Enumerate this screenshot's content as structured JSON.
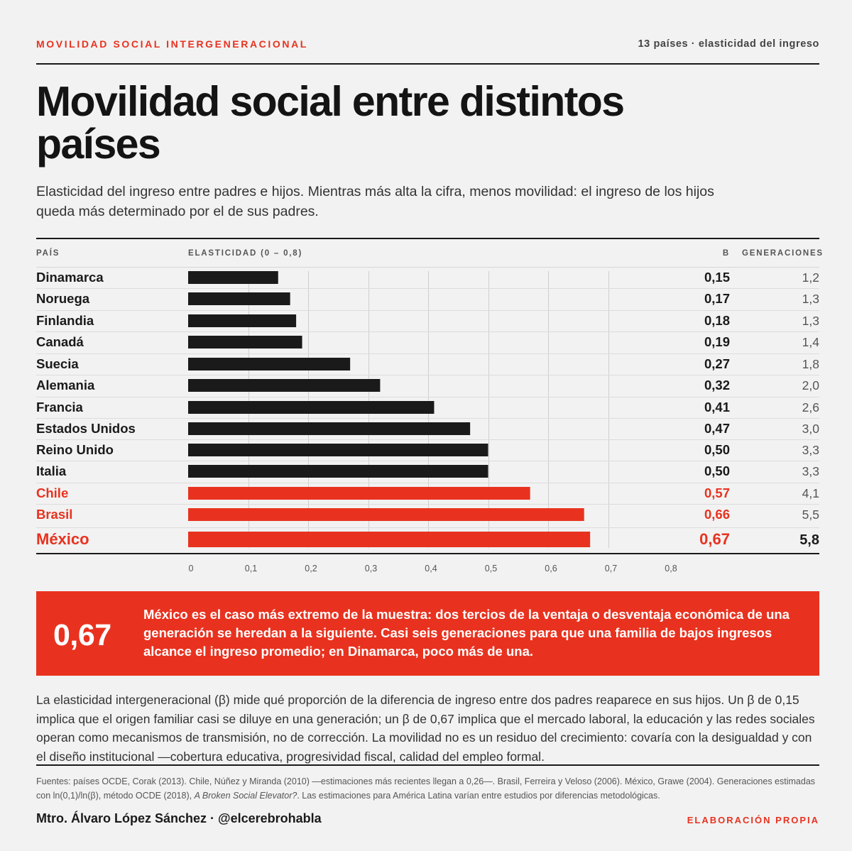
{
  "header": {
    "kicker": "MOVILIDAD SOCIAL INTERGENERACIONAL",
    "meta": "13 países · elasticidad del ingreso"
  },
  "title": "Movilidad social entre distintos países",
  "subtitle": "Elasticidad del ingreso entre padres e hijos. Mientras más alta la cifra, menos movilidad: el ingreso de los hijos queda más determinado por el de sus padres.",
  "columns": {
    "country": "PAÍS",
    "elasticity": "ELASTICIDAD (0 – 0,8)",
    "beta": "Β",
    "generations": "GENERACIONES"
  },
  "colors": {
    "dark_bar": "#1a1a1a",
    "highlight": "#e8321f",
    "background": "#f2f2f2"
  },
  "chart_data": {
    "type": "bar",
    "orientation": "horizontal",
    "title": "Movilidad social entre distintos países",
    "xlabel": "ELASTICIDAD (0 – 0,8)",
    "xlim": [
      0,
      0.8
    ],
    "x_ticks": [
      "0",
      "0,1",
      "0,2",
      "0,3",
      "0,4",
      "0,5",
      "0,6",
      "0,7",
      "0,8"
    ],
    "grid": true,
    "rows": [
      {
        "country": "Dinamarca",
        "value": 0.15,
        "value_label": "0,15",
        "generations": "1,2",
        "highlight": false
      },
      {
        "country": "Noruega",
        "value": 0.17,
        "value_label": "0,17",
        "generations": "1,3",
        "highlight": false
      },
      {
        "country": "Finlandia",
        "value": 0.18,
        "value_label": "0,18",
        "generations": "1,3",
        "highlight": false
      },
      {
        "country": "Canadá",
        "value": 0.19,
        "value_label": "0,19",
        "generations": "1,4",
        "highlight": false
      },
      {
        "country": "Suecia",
        "value": 0.27,
        "value_label": "0,27",
        "generations": "1,8",
        "highlight": false
      },
      {
        "country": "Alemania",
        "value": 0.32,
        "value_label": "0,32",
        "generations": "2,0",
        "highlight": false
      },
      {
        "country": "Francia",
        "value": 0.41,
        "value_label": "0,41",
        "generations": "2,6",
        "highlight": false
      },
      {
        "country": "Estados Unidos",
        "value": 0.47,
        "value_label": "0,47",
        "generations": "3,0",
        "highlight": false
      },
      {
        "country": "Reino Unido",
        "value": 0.5,
        "value_label": "0,50",
        "generations": "3,3",
        "highlight": false
      },
      {
        "country": "Italia",
        "value": 0.5,
        "value_label": "0,50",
        "generations": "3,3",
        "highlight": false
      },
      {
        "country": "Chile",
        "value": 0.57,
        "value_label": "0,57",
        "generations": "4,1",
        "highlight": true
      },
      {
        "country": "Brasil",
        "value": 0.66,
        "value_label": "0,66",
        "generations": "5,5",
        "highlight": true
      },
      {
        "country": "México",
        "value": 0.67,
        "value_label": "0,67",
        "generations": "5,8",
        "highlight": true,
        "emphasis": true
      }
    ]
  },
  "callout": {
    "number": "0,67",
    "text": "México es el caso más extremo de la muestra: dos tercios de la ventaja o desventaja económica de una generación se heredan a la siguiente. Casi seis generaciones para que una familia de bajos ingresos alcance el ingreso promedio; en Dinamarca, poco más de una."
  },
  "body": "La elasticidad intergeneracional (β) mide qué proporción de la diferencia de ingreso entre dos padres reaparece en sus hijos. Un β de 0,15 implica que el origen familiar casi se diluye en una generación; un β de 0,67 implica que el mercado laboral, la educación y las redes sociales operan como mecanismos de transmisión, no de corrección. La movilidad no es un residuo del crecimiento: covaría con la desigualdad y con el diseño institucional —cobertura educativa, progresividad fiscal, calidad del empleo formal.",
  "sources": {
    "part1": "Fuentes: países OCDE, Corak (2013). Chile, Núñez y Miranda (2010) —estimaciones más recientes llegan a 0,26—. Brasil, Ferreira y Veloso (2006). México, Grawe (2004). Generaciones estimadas con ln(0,1)/ln(β), método OCDE (2018), ",
    "italic": "A Broken Social Elevator?",
    "part2": ". Las estimaciones para América Latina varían entre estudios por diferencias metodológicas."
  },
  "footer": {
    "author": "Mtro. Álvaro López Sánchez · @elcerebrohabla",
    "credit": "ELABORACIÓN PROPIA"
  }
}
